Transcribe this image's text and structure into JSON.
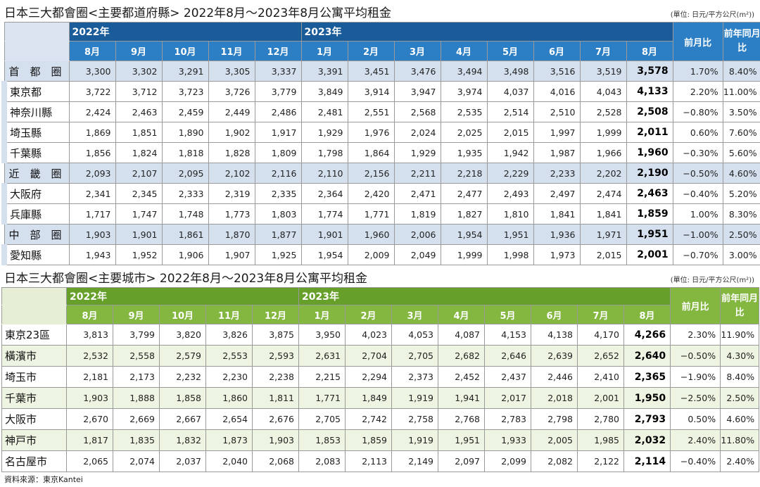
{
  "table1": {
    "title": "日本三大都會圈<主要都道府縣> 2022年8月～2023年8月公寓平均租金",
    "unit": "(單位: 日元/平方公尺(m²))",
    "year_2022": "2022年",
    "year_2023": "2023年",
    "months": [
      "8月",
      "9月",
      "10月",
      "11月",
      "12月",
      "1月",
      "2月",
      "3月",
      "4月",
      "5月",
      "6月",
      "7月",
      "8月"
    ],
    "col_mom": "前月比",
    "col_yoy": "前年同月比",
    "rows": [
      {
        "type": "region",
        "label": "首　都　圈",
        "values": [
          "3,300",
          "3,302",
          "3,291",
          "3,305",
          "3,337",
          "3,391",
          "3,451",
          "3,476",
          "3,494",
          "3,498",
          "3,516",
          "3,519",
          "3,578"
        ],
        "mom": "1.70%",
        "yoy": "8.40%"
      },
      {
        "type": "pref",
        "label": "東京都",
        "values": [
          "3,722",
          "3,712",
          "3,723",
          "3,726",
          "3,779",
          "3,849",
          "3,914",
          "3,947",
          "3,974",
          "4,037",
          "4,016",
          "4,043",
          "4,133"
        ],
        "mom": "2.20%",
        "yoy": "11.00%"
      },
      {
        "type": "pref",
        "label": "神奈川縣",
        "values": [
          "2,424",
          "2,463",
          "2,459",
          "2,449",
          "2,486",
          "2,481",
          "2,551",
          "2,568",
          "2,535",
          "2,514",
          "2,510",
          "2,528",
          "2,508"
        ],
        "mom": "−0.80%",
        "yoy": "3.50%"
      },
      {
        "type": "pref",
        "label": "埼玉縣",
        "values": [
          "1,869",
          "1,851",
          "1,890",
          "1,902",
          "1,917",
          "1,929",
          "1,976",
          "2,024",
          "2,025",
          "2,015",
          "1,997",
          "1,999",
          "2,011"
        ],
        "mom": "0.60%",
        "yoy": "7.60%"
      },
      {
        "type": "pref",
        "label": "千葉縣",
        "values": [
          "1,856",
          "1,824",
          "1,818",
          "1,828",
          "1,809",
          "1,798",
          "1,864",
          "1,929",
          "1,935",
          "1,942",
          "1,987",
          "1,966",
          "1,960"
        ],
        "mom": "−0.30%",
        "yoy": "5.60%"
      },
      {
        "type": "region",
        "label": "近　畿　圈",
        "values": [
          "2,093",
          "2,107",
          "2,095",
          "2,102",
          "2,116",
          "2,110",
          "2,156",
          "2,211",
          "2,218",
          "2,229",
          "2,233",
          "2,202",
          "2,190"
        ],
        "mom": "−0.50%",
        "yoy": "4.60%"
      },
      {
        "type": "pref",
        "label": "大阪府",
        "values": [
          "2,341",
          "2,345",
          "2,333",
          "2,319",
          "2,335",
          "2,364",
          "2,420",
          "2,471",
          "2,477",
          "2,493",
          "2,497",
          "2,474",
          "2,463"
        ],
        "mom": "−0.40%",
        "yoy": "5.20%"
      },
      {
        "type": "pref",
        "label": "兵庫縣",
        "values": [
          "1,717",
          "1,747",
          "1,748",
          "1,773",
          "1,803",
          "1,774",
          "1,771",
          "1,819",
          "1,827",
          "1,810",
          "1,841",
          "1,841",
          "1,859"
        ],
        "mom": "1.00%",
        "yoy": "8.30%"
      },
      {
        "type": "region",
        "label": "中　部　圈",
        "values": [
          "1,903",
          "1,901",
          "1,861",
          "1,870",
          "1,877",
          "1,901",
          "1,960",
          "2,006",
          "1,954",
          "1,951",
          "1,936",
          "1,971",
          "1,951"
        ],
        "mom": "−1.00%",
        "yoy": "2.50%"
      },
      {
        "type": "pref",
        "label": "愛知縣",
        "values": [
          "1,943",
          "1,952",
          "1,906",
          "1,907",
          "1,925",
          "1,954",
          "2,009",
          "2,049",
          "1,999",
          "1,998",
          "1,973",
          "2,015",
          "2,001"
        ],
        "mom": "−0.70%",
        "yoy": "3.00%"
      }
    ]
  },
  "table2": {
    "title": "日本三大都會圈<主要城市> 2022年8月～2023年8月公寓平均租金",
    "unit": "(單位: 日元/平方公尺(m²))",
    "year_2022": "2022年",
    "year_2023": "2023年",
    "months": [
      "8月",
      "9月",
      "10月",
      "11月",
      "12月",
      "1月",
      "2月",
      "3月",
      "4月",
      "5月",
      "6月",
      "7月",
      "8月"
    ],
    "col_mom": "前月比",
    "col_yoy": "前年同月比",
    "rows": [
      {
        "label": "東京23區",
        "values": [
          "3,813",
          "3,799",
          "3,820",
          "3,826",
          "3,875",
          "3,950",
          "4,023",
          "4,053",
          "4,087",
          "4,153",
          "4,138",
          "4,170",
          "4,266"
        ],
        "mom": "2.30%",
        "yoy": "11.90%"
      },
      {
        "label": "橫濱市",
        "values": [
          "2,532",
          "2,558",
          "2,579",
          "2,553",
          "2,593",
          "2,631",
          "2,704",
          "2,705",
          "2,682",
          "2,646",
          "2,639",
          "2,652",
          "2,640"
        ],
        "mom": "−0.50%",
        "yoy": "4.30%"
      },
      {
        "label": "埼玉市",
        "values": [
          "2,181",
          "2,173",
          "2,232",
          "2,230",
          "2,238",
          "2,215",
          "2,294",
          "2,373",
          "2,452",
          "2,437",
          "2,446",
          "2,410",
          "2,365"
        ],
        "mom": "−1.90%",
        "yoy": "8.40%"
      },
      {
        "label": "千葉市",
        "values": [
          "1,903",
          "1,888",
          "1,858",
          "1,860",
          "1,811",
          "1,771",
          "1,849",
          "1,919",
          "1,941",
          "2,017",
          "2,018",
          "2,001",
          "1,950"
        ],
        "mom": "−2.50%",
        "yoy": "2.50%"
      },
      {
        "label": "大阪市",
        "values": [
          "2,670",
          "2,669",
          "2,667",
          "2,654",
          "2,676",
          "2,705",
          "2,742",
          "2,758",
          "2,768",
          "2,783",
          "2,798",
          "2,780",
          "2,793"
        ],
        "mom": "0.50%",
        "yoy": "4.60%"
      },
      {
        "label": "神戸市",
        "values": [
          "1,817",
          "1,835",
          "1,832",
          "1,873",
          "1,903",
          "1,853",
          "1,859",
          "1,919",
          "1,951",
          "1,933",
          "2,005",
          "1,985",
          "2,032"
        ],
        "mom": "2.40%",
        "yoy": "11.80%"
      },
      {
        "label": "名古屋市",
        "values": [
          "2,065",
          "2,074",
          "2,037",
          "2,040",
          "2,068",
          "2,083",
          "2,113",
          "2,149",
          "2,097",
          "2,099",
          "2,082",
          "2,122",
          "2,114"
        ],
        "mom": "−0.40%",
        "yoy": "2.40%"
      }
    ]
  },
  "source": "資料來源：東京Kantei"
}
